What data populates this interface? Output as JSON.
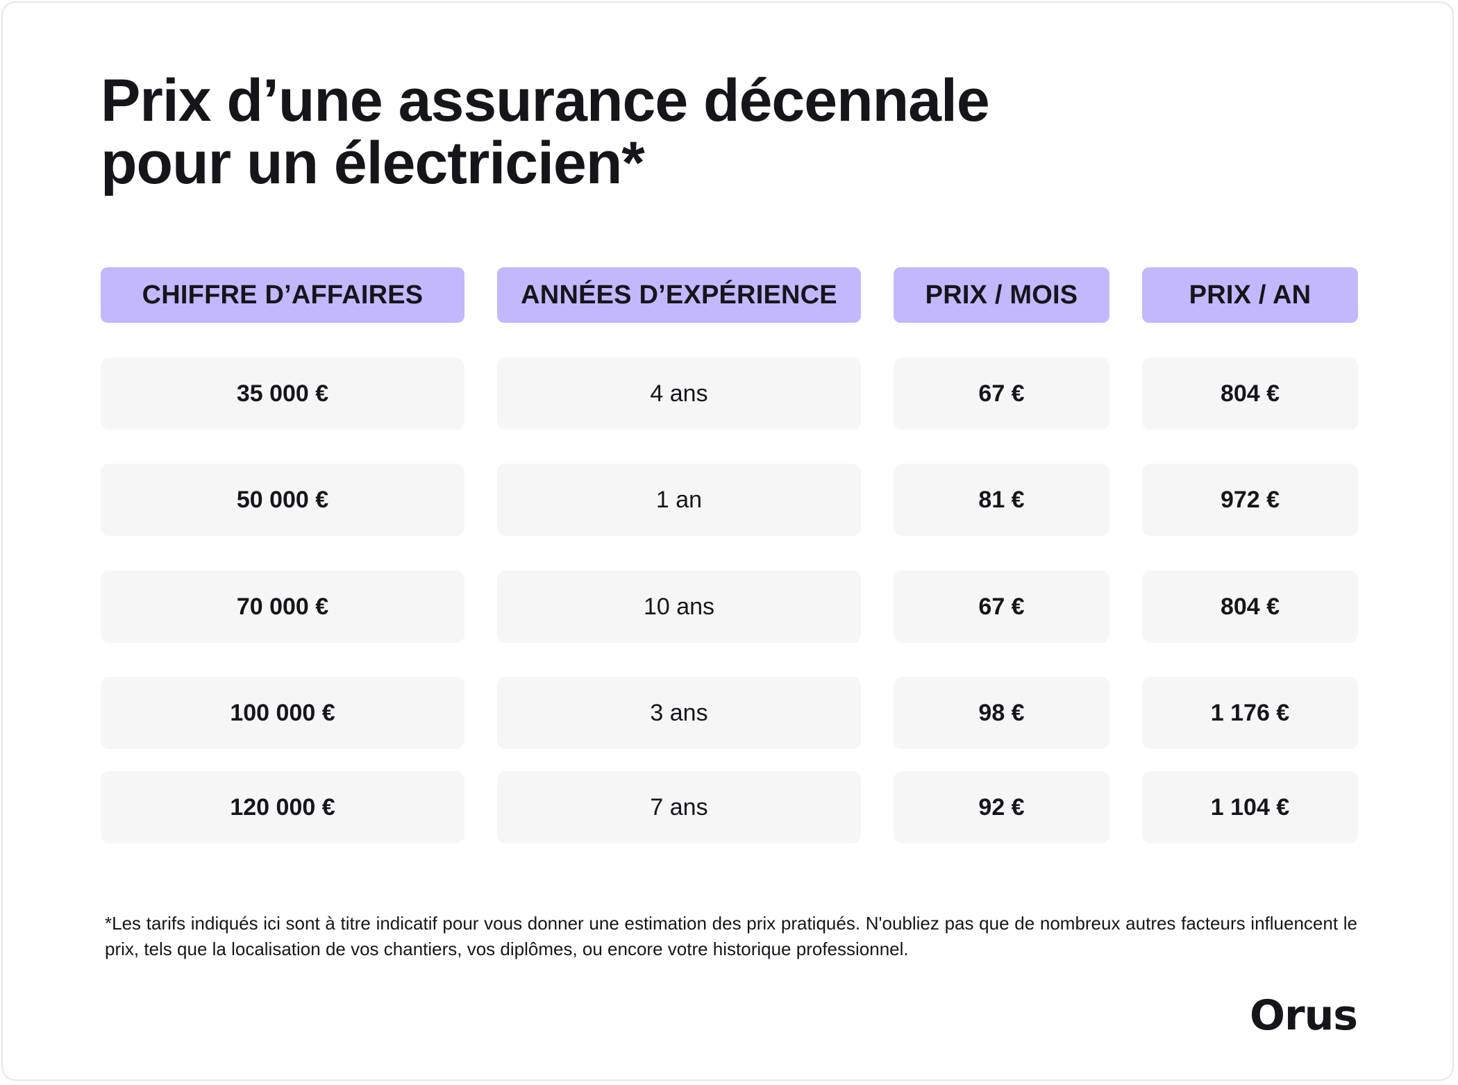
{
  "title": {
    "line1": "Prix d’une assurance décennale",
    "line2": "pour un électricien*"
  },
  "table": {
    "headers": [
      "CHIFFRE D’AFFAIRES",
      "ANNÉES D’EXPÉRIENCE",
      "PRIX / MOIS",
      "PRIX / AN"
    ],
    "rows": [
      [
        "35 000 €",
        "4 ans",
        "67 €",
        "804 €"
      ],
      [
        "50 000 €",
        "1 an",
        "81 €",
        "972 €"
      ],
      [
        "70 000 €",
        "10 ans",
        "67 €",
        "804 €"
      ],
      [
        "100 000 €",
        "3 ans",
        "98 €",
        "1 176 €"
      ],
      [
        "120 000 €",
        "7 ans",
        "92 €",
        "1 104 €"
      ]
    ]
  },
  "footnote": "*Les tarifs indiqués ici sont à titre indicatif pour vous donner une estimation des prix pratiqués. N'oubliez pas que de nombreux autres facteurs influencent le prix, tels que la localisation de vos chantiers, vos diplômes, ou encore votre historique professionnel.",
  "brand": {
    "logo_text": "Orus"
  },
  "colors": {
    "header_bg": "#c3b8fd",
    "cell_bg": "#f6f6f6",
    "text": "#16151a"
  }
}
